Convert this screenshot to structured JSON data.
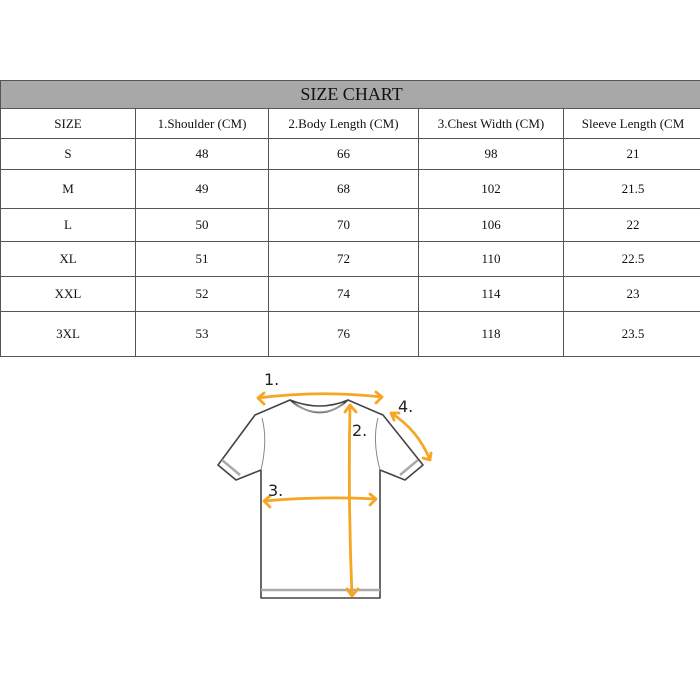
{
  "title": "SIZE CHART",
  "headers": [
    "SIZE",
    "1.Shoulder (CM)",
    "2.Body Length (CM)",
    "3.Chest Width (CM)",
    "Sleeve Length (CM"
  ],
  "rows": [
    [
      "S",
      "48",
      "66",
      "98",
      "21"
    ],
    [
      "M",
      "49",
      "68",
      "102",
      "21.5"
    ],
    [
      "L",
      "50",
      "70",
      "106",
      "22"
    ],
    [
      "XL",
      "51",
      "72",
      "110",
      "22.5"
    ],
    [
      "XXL",
      "52",
      "74",
      "114",
      "23"
    ],
    [
      "3XL",
      "53",
      "76",
      "118",
      "23.5"
    ]
  ],
  "diagram": {
    "labels": [
      "1.",
      "2.",
      "3.",
      "4."
    ],
    "accent": "#f5a623"
  }
}
